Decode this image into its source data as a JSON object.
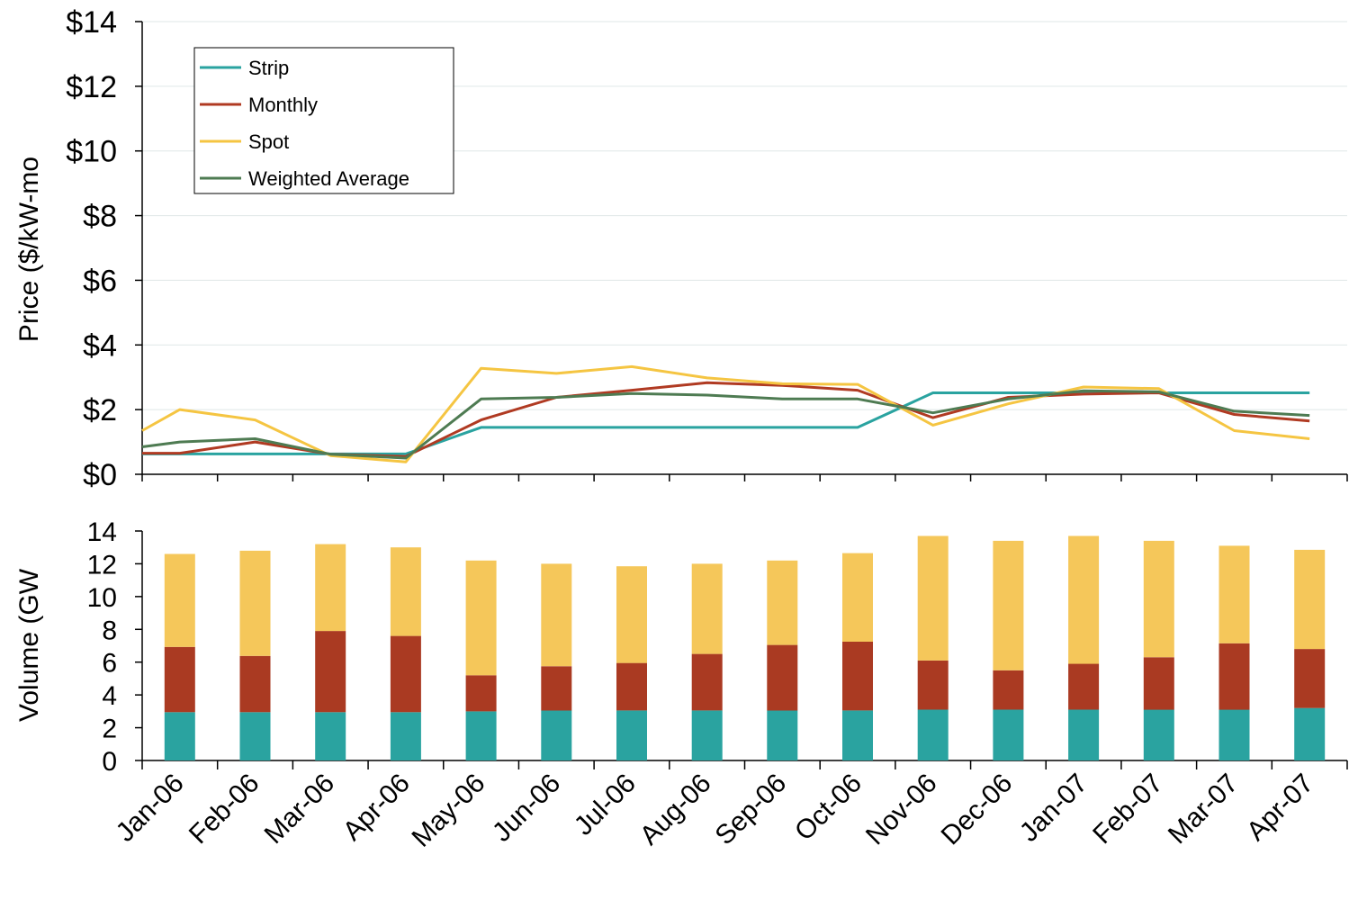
{
  "chart_data": [
    {
      "type": "line",
      "ylabel": "Price ($/kW-mo",
      "ylim": [
        0,
        14
      ],
      "y_ticks": [
        0,
        2,
        4,
        6,
        8,
        10,
        12,
        14
      ],
      "y_tick_labels": [
        "$0",
        "$2",
        "$4",
        "$6",
        "$8",
        "$10",
        "$12",
        "$14"
      ],
      "grid": true,
      "legend_position": "top-left",
      "categories": [
        "Jan-06",
        "Feb-06",
        "Mar-06",
        "Apr-06",
        "May-06",
        "Jun-06",
        "Jul-06",
        "Aug-06",
        "Sep-06",
        "Oct-06",
        "Nov-06",
        "Dec-06",
        "Jan-07",
        "Feb-07",
        "Mar-07",
        "Apr-07"
      ],
      "series": [
        {
          "name": "Strip",
          "color": "#2aa3a0",
          "x": [
            0,
            0.5,
            1.5,
            2.5,
            3.5,
            4.5,
            5.5,
            6.5,
            7.5,
            8.5,
            9.5,
            10.5,
            11.5,
            12.5,
            13.5,
            14.5,
            15.5
          ],
          "values": [
            0.63,
            0.63,
            0.63,
            0.63,
            0.63,
            1.45,
            1.45,
            1.45,
            1.45,
            1.45,
            1.45,
            2.52,
            2.52,
            2.52,
            2.52,
            2.52,
            2.52
          ]
        },
        {
          "name": "Monthly",
          "color": "#b03a22",
          "x": [
            0,
            0.5,
            1.5,
            2.5,
            3.5,
            4.5,
            5.5,
            6.5,
            7.5,
            8.5,
            9.5,
            10.5,
            11.5,
            12.5,
            13.5,
            14.5,
            15.5
          ],
          "values": [
            0.65,
            0.65,
            1.0,
            0.62,
            0.55,
            1.68,
            2.38,
            2.6,
            2.83,
            2.75,
            2.6,
            1.75,
            2.38,
            2.48,
            2.52,
            1.85,
            1.65
          ]
        },
        {
          "name": "Spot",
          "color": "#f5c542",
          "x": [
            0,
            0.5,
            1.5,
            2.5,
            3.5,
            4.5,
            5.5,
            6.5,
            7.5,
            8.5,
            9.5,
            10.5,
            11.5,
            12.5,
            13.5,
            14.5,
            15.5
          ],
          "values": [
            1.35,
            2.0,
            1.68,
            0.58,
            0.38,
            3.28,
            3.12,
            3.33,
            2.98,
            2.8,
            2.78,
            1.52,
            2.18,
            2.7,
            2.65,
            1.35,
            1.1
          ]
        },
        {
          "name": "Weighted Average",
          "color": "#4e7b52",
          "x": [
            0,
            0.5,
            1.5,
            2.5,
            3.5,
            4.5,
            5.5,
            6.5,
            7.5,
            8.5,
            9.5,
            10.5,
            11.5,
            12.5,
            13.5,
            14.5,
            15.5
          ],
          "values": [
            0.85,
            1.0,
            1.1,
            0.62,
            0.5,
            2.33,
            2.38,
            2.5,
            2.45,
            2.33,
            2.33,
            1.9,
            2.33,
            2.58,
            2.55,
            1.95,
            1.82
          ]
        }
      ]
    },
    {
      "type": "bar",
      "stacked": true,
      "ylabel": "Volume (GW",
      "ylim": [
        0,
        14
      ],
      "y_ticks": [
        0,
        2,
        4,
        6,
        8,
        10,
        12,
        14
      ],
      "categories": [
        "Jan-06",
        "Feb-06",
        "Mar-06",
        "Apr-06",
        "May-06",
        "Jun-06",
        "Jul-06",
        "Aug-06",
        "Sep-06",
        "Oct-06",
        "Nov-06",
        "Dec-06",
        "Jan-07",
        "Feb-07",
        "Mar-07",
        "Apr-07"
      ],
      "series": [
        {
          "name": "Strip",
          "color": "#2aa3a0",
          "values": [
            2.95,
            2.95,
            2.95,
            2.95,
            3.0,
            3.05,
            3.05,
            3.05,
            3.05,
            3.05,
            3.1,
            3.1,
            3.1,
            3.1,
            3.1,
            3.2
          ]
        },
        {
          "name": "Monthly",
          "color": "#aa3a22",
          "values": [
            3.98,
            3.43,
            4.95,
            4.65,
            2.2,
            2.7,
            2.9,
            3.45,
            4.0,
            4.2,
            3.0,
            2.4,
            2.8,
            3.2,
            4.05,
            3.6
          ]
        },
        {
          "name": "Spot",
          "color": "#f5c75a",
          "values": [
            5.67,
            6.42,
            5.3,
            5.4,
            7.0,
            6.25,
            5.9,
            5.5,
            5.15,
            5.4,
            7.6,
            7.9,
            7.8,
            7.1,
            5.95,
            6.05
          ]
        }
      ]
    }
  ]
}
